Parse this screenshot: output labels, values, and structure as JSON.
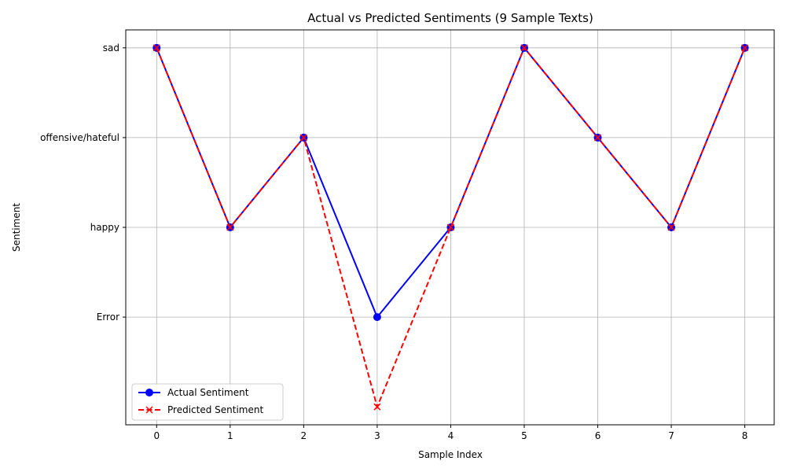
{
  "chart_data": {
    "type": "line",
    "title": "Actual vs Predicted Sentiments (9 Sample Texts)",
    "xlabel": "Sample Index",
    "ylabel": "Sentiment",
    "x": [
      0,
      1,
      2,
      3,
      4,
      5,
      6,
      7,
      8
    ],
    "y_categories": [
      "Error",
      "happy",
      "offensive/hateful",
      "sad"
    ],
    "series": [
      {
        "name": "Actual Sentiment",
        "values": [
          "sad",
          "happy",
          "offensive/hateful",
          "Error",
          "happy",
          "sad",
          "offensive/hateful",
          "happy",
          "sad"
        ],
        "color": "#0000ff",
        "linestyle": "solid",
        "marker": "circle"
      },
      {
        "name": "Predicted Sentiment",
        "values": [
          "sad",
          "happy",
          "offensive/hateful",
          null,
          "happy",
          "sad",
          "offensive/hateful",
          "happy",
          "sad"
        ],
        "color": "#ff0000",
        "linestyle": "dashed",
        "marker": "x"
      }
    ],
    "grid": true,
    "legend": "lower-left"
  }
}
